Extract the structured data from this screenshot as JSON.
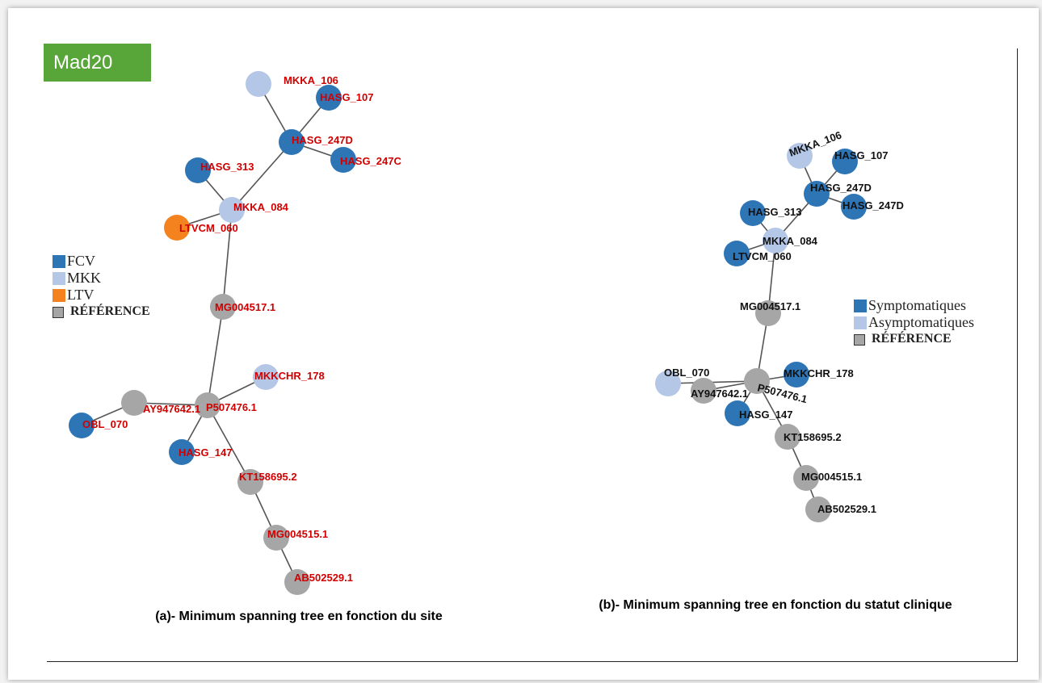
{
  "badge": {
    "label": "Mad20",
    "color": "#58a63a"
  },
  "colors": {
    "dark_blue": "#2e75b6",
    "light_blue": "#b4c7e7",
    "orange": "#f4831f",
    "gray": "#a6a6a6",
    "edge": "#555555",
    "label_red": "#d00000",
    "label_black": "#111111"
  },
  "captions": {
    "a": "(a)- Minimum spanning tree en fonction du site",
    "b": "(b)- Minimum spanning tree en fonction du statut clinique"
  },
  "legend_a": [
    {
      "label": "FCV",
      "color": "#2e75b6"
    },
    {
      "label": "MKK",
      "color": "#b4c7e7"
    },
    {
      "label": "LTV",
      "color": "#f4831f"
    },
    {
      "label": "RÉFÉRENCE",
      "color": "#a6a6a6"
    }
  ],
  "legend_b": [
    {
      "label": "Symptomatiques",
      "color": "#2e75b6"
    },
    {
      "label": "Asymptomatiques",
      "color": "#b4c7e7"
    },
    {
      "label": "RÉFÉRENCE",
      "color": "#a6a6a6"
    }
  ],
  "tree_a": {
    "nodes": [
      {
        "id": "MKKA_106",
        "group": "light_blue"
      },
      {
        "id": "HASG_107",
        "group": "dark_blue"
      },
      {
        "id": "HASG_247D",
        "group": "dark_blue"
      },
      {
        "id": "HASG_247C",
        "group": "dark_blue"
      },
      {
        "id": "HASG_313",
        "group": "dark_blue"
      },
      {
        "id": "MKKA_084",
        "group": "light_blue"
      },
      {
        "id": "LTVCM_060",
        "group": "orange"
      },
      {
        "id": "MG004517.1",
        "group": "gray"
      },
      {
        "id": "MKKCHR_178",
        "group": "light_blue"
      },
      {
        "id": "AY947642.1",
        "group": "gray"
      },
      {
        "id": "P507476.1",
        "group": "gray"
      },
      {
        "id": "OBL_070",
        "group": "dark_blue"
      },
      {
        "id": "HASG_147",
        "group": "dark_blue"
      },
      {
        "id": "KT158695.2",
        "group": "gray"
      },
      {
        "id": "MG004515.1",
        "group": "gray"
      },
      {
        "id": "AB502529.1",
        "group": "gray"
      }
    ],
    "edges": [
      [
        "MKKA_106",
        "HASG_247D"
      ],
      [
        "HASG_107",
        "HASG_247D"
      ],
      [
        "HASG_247D",
        "HASG_247C"
      ],
      [
        "HASG_247D",
        "MKKA_084"
      ],
      [
        "HASG_313",
        "MKKA_084"
      ],
      [
        "LTVCM_060",
        "MKKA_084"
      ],
      [
        "MKKA_084",
        "MG004517.1"
      ],
      [
        "MG004517.1",
        "P507476.1"
      ],
      [
        "P507476.1",
        "MKKCHR_178"
      ],
      [
        "P507476.1",
        "AY947642.1"
      ],
      [
        "AY947642.1",
        "OBL_070"
      ],
      [
        "P507476.1",
        "HASG_147"
      ],
      [
        "P507476.1",
        "KT158695.2"
      ],
      [
        "KT158695.2",
        "MG004515.1"
      ],
      [
        "MG004515.1",
        "AB502529.1"
      ]
    ]
  },
  "tree_b": {
    "nodes": [
      {
        "id": "MKKA_106",
        "group": "light_blue"
      },
      {
        "id": "HASG_107",
        "group": "dark_blue"
      },
      {
        "id": "HASG_247D",
        "group": "dark_blue"
      },
      {
        "id": "HASG_247D ",
        "label": "HASG_247D",
        "group": "dark_blue"
      },
      {
        "id": "HASG_313",
        "group": "dark_blue"
      },
      {
        "id": "MKKA_084",
        "group": "light_blue"
      },
      {
        "id": "LTVCM_060",
        "group": "dark_blue"
      },
      {
        "id": "MG004517.1",
        "group": "gray"
      },
      {
        "id": "OBL_070",
        "group": "light_blue"
      },
      {
        "id": "P507476.1",
        "group": "gray"
      },
      {
        "id": "AY947642.1",
        "group": "gray"
      },
      {
        "id": "MKKCHR_178",
        "group": "dark_blue"
      },
      {
        "id": "HASG_147",
        "group": "dark_blue"
      },
      {
        "id": "KT158695.2",
        "group": "gray"
      },
      {
        "id": "MG004515.1",
        "group": "gray"
      },
      {
        "id": "AB502529.1",
        "group": "gray"
      }
    ],
    "edges": [
      [
        "MKKA_106",
        "HASG_247D"
      ],
      [
        "HASG_107",
        "HASG_247D"
      ],
      [
        "HASG_247D",
        "HASG_247D "
      ],
      [
        "HASG_247D",
        "MKKA_084"
      ],
      [
        "HASG_313",
        "MKKA_084"
      ],
      [
        "LTVCM_060",
        "MKKA_084"
      ],
      [
        "MKKA_084",
        "MG004517.1"
      ],
      [
        "MG004517.1",
        "P507476.1"
      ],
      [
        "P507476.1",
        "MKKCHR_178"
      ],
      [
        "P507476.1",
        "OBL_070"
      ],
      [
        "P507476.1",
        "AY947642.1"
      ],
      [
        "P507476.1",
        "HASG_147"
      ],
      [
        "P507476.1",
        "KT158695.2"
      ],
      [
        "KT158695.2",
        "MG004515.1"
      ],
      [
        "MG004515.1",
        "AB502529.1"
      ]
    ]
  }
}
